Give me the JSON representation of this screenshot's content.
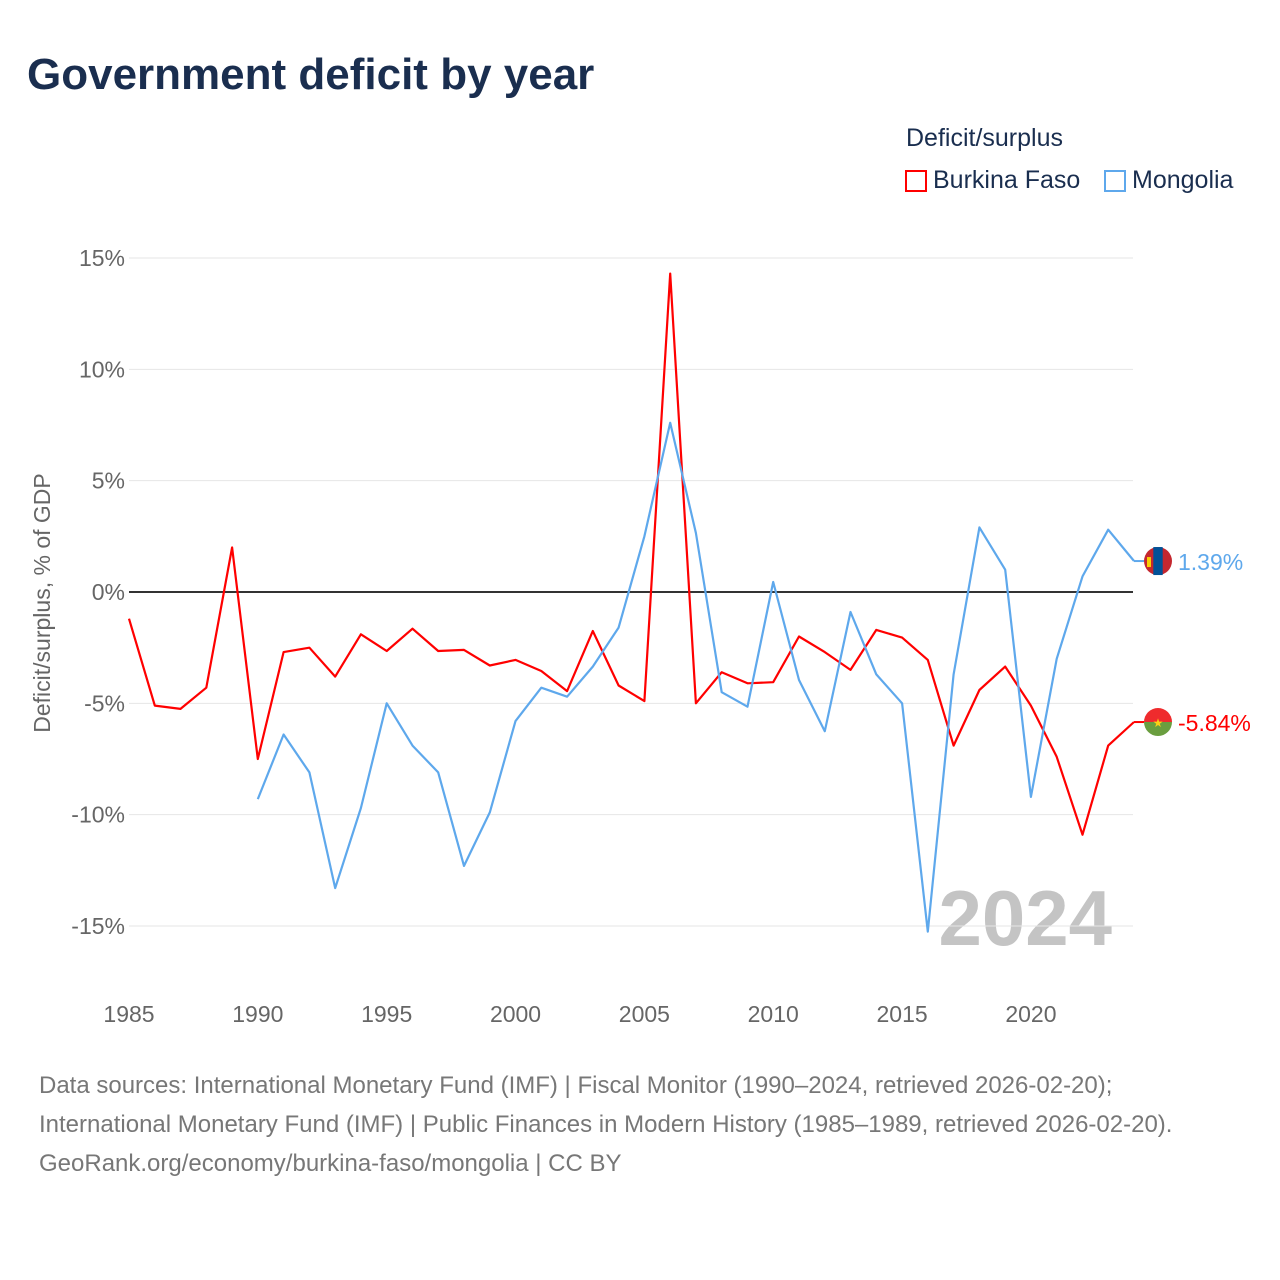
{
  "title": "Government deficit by year",
  "legend": {
    "title": "Deficit/surplus",
    "items": [
      {
        "label": "Burkina Faso",
        "color": "#ff0000"
      },
      {
        "label": "Mongolia",
        "color": "#5ea8ec"
      }
    ]
  },
  "footer": {
    "sources": "Data sources: International Monetary Fund (IMF) | Fiscal Monitor (1990–2024, retrieved 2026-02-20); International Monetary Fund (IMF) | Public Finances in Modern History (1985–1989, retrieved 2026-02-20).",
    "credit": "GeoRank.org/economy/burkina-faso/mongolia | CC BY"
  },
  "chart_data": {
    "type": "line",
    "title": "Government deficit by year",
    "xlabel": "",
    "ylabel": "Deficit/surplus, % of GDP",
    "xlim": [
      1985,
      2024
    ],
    "ylim": [
      -15,
      15
    ],
    "x_ticks": [
      "1985",
      "1990",
      "1995",
      "2000",
      "2005",
      "2010",
      "2015",
      "2020"
    ],
    "y_ticks": [
      "15%",
      "10%",
      "5%",
      "0%",
      "-5%",
      "-10%",
      "-15%"
    ],
    "y_tick_values": [
      15,
      10,
      5,
      0,
      -5,
      -10,
      -15
    ],
    "watermark_year": "2024",
    "series": [
      {
        "name": "Burkina Faso",
        "color": "#ff0000",
        "start_year": 1985,
        "end_label": "-5.84%",
        "values": [
          -1.2,
          -5.1,
          -5.25,
          -4.3,
          2.0,
          -7.5,
          -2.7,
          -2.5,
          -3.8,
          -1.9,
          -2.65,
          -1.65,
          -2.65,
          -2.6,
          -3.3,
          -3.05,
          -3.55,
          -4.45,
          -1.75,
          -4.2,
          -4.9,
          14.3,
          -5.0,
          -3.6,
          -4.1,
          -4.05,
          -2.0,
          -2.7,
          -3.5,
          -1.7,
          -2.05,
          -3.05,
          -6.9,
          -4.4,
          -3.35,
          -5.1,
          -7.4,
          -10.9,
          -6.9,
          -5.84
        ]
      },
      {
        "name": "Mongolia",
        "color": "#5ea8ec",
        "start_year": 1990,
        "end_label": "1.39%",
        "values": [
          -9.3,
          -6.4,
          -8.1,
          -13.3,
          -9.7,
          -5.0,
          -6.9,
          -8.1,
          -12.3,
          -9.9,
          -5.8,
          -4.3,
          -4.7,
          -3.35,
          -1.6,
          2.5,
          7.6,
          2.65,
          -4.5,
          -5.15,
          0.45,
          -3.95,
          -6.25,
          -0.9,
          -3.7,
          -5.0,
          -15.25,
          -3.7,
          2.9,
          1.0,
          -9.2,
          -3.0,
          0.7,
          2.8,
          1.39
        ]
      }
    ]
  }
}
